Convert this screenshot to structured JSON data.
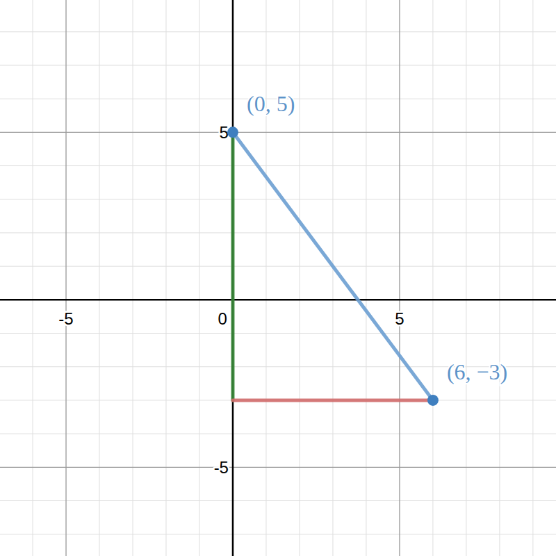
{
  "chart_data": {
    "type": "line",
    "grid": true,
    "xlim": [
      -6.98,
      9.69
    ],
    "ylim": [
      -7.65,
      8.95
    ],
    "xticks": [
      -5,
      0,
      5
    ],
    "yticks": [
      -5,
      5
    ],
    "series": [
      {
        "type": "line",
        "color": "#3a8a3a",
        "x": [
          0,
          0
        ],
        "values": [
          5,
          -3
        ]
      },
      {
        "type": "line",
        "color": "#d06a6a",
        "x": [
          0,
          6
        ],
        "values": [
          -3,
          -3
        ]
      },
      {
        "type": "line",
        "color": "#6b9fd2",
        "x": [
          0,
          6
        ],
        "values": [
          5,
          -3
        ]
      },
      {
        "type": "scatter",
        "color": "#3f7fbf",
        "marker": "circle",
        "x": [
          0,
          6
        ],
        "values": [
          5,
          -3
        ],
        "labels": [
          "(0, 5)",
          "(6, −3)"
        ]
      }
    ]
  }
}
